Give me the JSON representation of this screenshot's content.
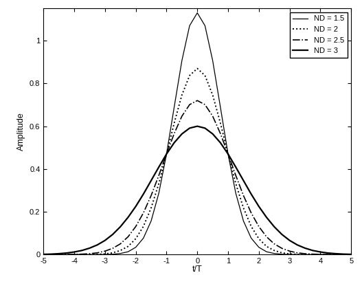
{
  "chart_data": {
    "type": "line",
    "xlabel": "t/T",
    "ylabel": "Amplitude",
    "x": [
      -5,
      -4.75,
      -4.5,
      -4.25,
      -4,
      -3.75,
      -3.5,
      -3.25,
      -3,
      -2.75,
      -2.5,
      -2.25,
      -2,
      -1.75,
      -1.5,
      -1.25,
      -1,
      -0.75,
      -0.5,
      -0.25,
      0,
      0.25,
      0.5,
      0.75,
      1,
      1.25,
      1.5,
      1.75,
      2,
      2.25,
      2.5,
      2.75,
      3,
      3.25,
      3.5,
      3.75,
      4,
      4.25,
      4.5,
      4.75,
      5
    ],
    "series": [
      {
        "name": "ND = 1.5",
        "color": "#000000",
        "line_style": "solid",
        "values": [
          0,
          0,
          0,
          0,
          0,
          0,
          0,
          0,
          0.0004,
          0.0015,
          0.005,
          0.013,
          0.034,
          0.077,
          0.157,
          0.287,
          0.47,
          0.69,
          0.907,
          1.07,
          1.13,
          1.07,
          0.907,
          0.69,
          0.47,
          0.287,
          0.157,
          0.077,
          0.034,
          0.013,
          0.005,
          0.0015,
          0.0004,
          0,
          0,
          0,
          0,
          0,
          0,
          0,
          0
        ]
      },
      {
        "name": "ND = 2",
        "color": "#000000",
        "line_style": "dotted",
        "values": [
          0,
          0,
          0,
          0,
          0,
          0,
          0,
          0.001,
          0.003,
          0.008,
          0.019,
          0.038,
          0.074,
          0.132,
          0.218,
          0.332,
          0.47,
          0.615,
          0.746,
          0.837,
          0.87,
          0.837,
          0.746,
          0.615,
          0.47,
          0.332,
          0.218,
          0.132,
          0.074,
          0.038,
          0.019,
          0.008,
          0.003,
          0.001,
          0,
          0,
          0,
          0,
          0,
          0,
          0
        ]
      },
      {
        "name": "ND = 2.5",
        "color": "#000000",
        "line_style": "dashdot",
        "values": [
          0,
          0,
          0,
          0,
          0.001,
          0.002,
          0.004,
          0.008,
          0.016,
          0.029,
          0.05,
          0.083,
          0.131,
          0.195,
          0.276,
          0.37,
          0.47,
          0.566,
          0.647,
          0.701,
          0.72,
          0.701,
          0.647,
          0.566,
          0.47,
          0.37,
          0.276,
          0.195,
          0.131,
          0.083,
          0.05,
          0.029,
          0.016,
          0.008,
          0.004,
          0.002,
          0.001,
          0,
          0,
          0,
          0
        ]
      },
      {
        "name": "ND = 3",
        "color": "#000000",
        "line_style": "solid",
        "values": [
          0.001,
          0.002,
          0.004,
          0.007,
          0.012,
          0.019,
          0.03,
          0.045,
          0.066,
          0.094,
          0.13,
          0.174,
          0.225,
          0.283,
          0.346,
          0.409,
          0.47,
          0.523,
          0.564,
          0.591,
          0.6,
          0.591,
          0.564,
          0.523,
          0.47,
          0.409,
          0.346,
          0.283,
          0.225,
          0.174,
          0.13,
          0.094,
          0.066,
          0.045,
          0.03,
          0.019,
          0.012,
          0.007,
          0.004,
          0.002,
          0.001
        ]
      }
    ],
    "xlim": [
      -5,
      5
    ],
    "xticks": [
      -5,
      -4,
      -3,
      -2,
      -1,
      0,
      1,
      2,
      3,
      4,
      5
    ],
    "ylim": [
      0,
      1.15
    ],
    "yticks": [
      0,
      0.2,
      0.4,
      0.6,
      0.8,
      1
    ],
    "grid": false,
    "legend": "upper right"
  }
}
